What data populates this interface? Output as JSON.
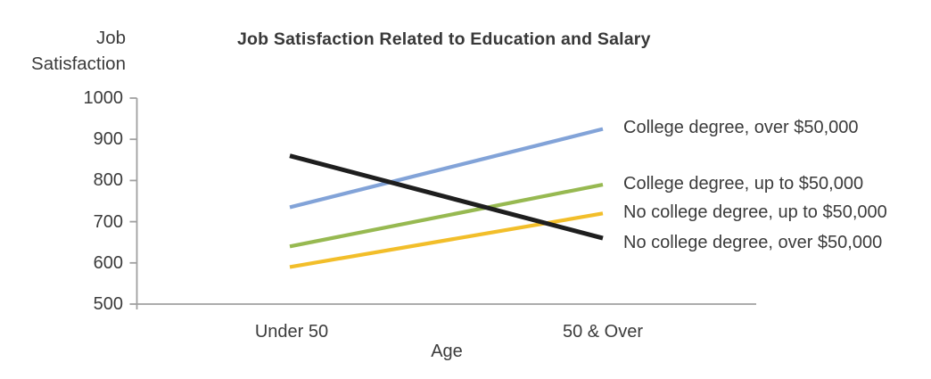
{
  "chart_data": {
    "type": "line",
    "title": "Job Satisfaction Related to Education and Salary",
    "xlabel": "Age",
    "ylabel": "Job Satisfaction",
    "ylabel_lines": [
      "Job",
      "Satisfaction"
    ],
    "categories": [
      "Under 50",
      "50 & Over"
    ],
    "series": [
      {
        "name": "College degree, over $50,000",
        "values": [
          735,
          925
        ],
        "color": "#82A3D8"
      },
      {
        "name": "College degree, up to $50,000",
        "values": [
          640,
          790
        ],
        "color": "#97B951"
      },
      {
        "name": "No college degree, up to $50,000",
        "values": [
          590,
          720
        ],
        "color": "#F2BE2A"
      },
      {
        "name": "No college degree, over $50,000",
        "values": [
          860,
          660
        ],
        "color": "#1E1E1E"
      }
    ],
    "ylim": [
      500,
      1000
    ],
    "y_ticks": [
      1000,
      900,
      800,
      700,
      600,
      500
    ],
    "grid": false,
    "legend_position": "line-end-labels-right",
    "axis_color": "#A0A0A0",
    "text_color": "#3B3B3B"
  }
}
